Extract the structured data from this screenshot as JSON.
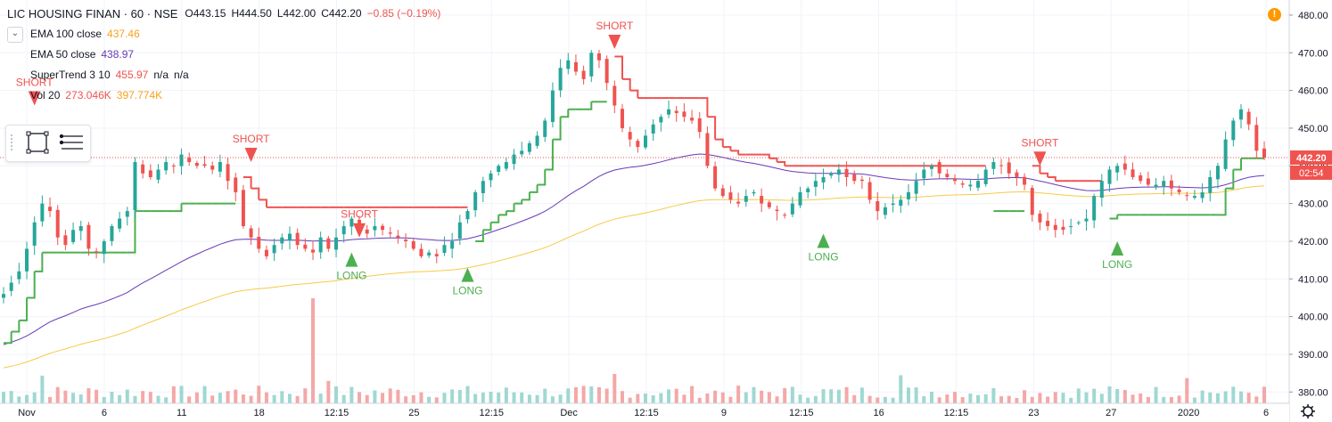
{
  "header": {
    "symbol": "LIC HOUSING FINAN · 60 · NSE",
    "open": "O443.15",
    "high": "H444.50",
    "low": "L442.00",
    "close": "C442.20",
    "change": "−0.85 (−0.19%)",
    "chevron_icon": "chevron-down-icon",
    "warning_icon": "warning-icon",
    "warning_glyph": "!"
  },
  "indicators": {
    "ema100": {
      "label": "EMA 100 close",
      "value": "437.46"
    },
    "ema50": {
      "label": "EMA 50 close",
      "value": "438.97"
    },
    "supertrend": {
      "label": "SuperTrend 3 10",
      "value": "455.97",
      "na1": "n/a",
      "na2": "n/a"
    },
    "volume": {
      "label": "Vol 20",
      "value1": "273.046K",
      "value2": "397.774K"
    }
  },
  "toolbox": {
    "icons": [
      "square-select-icon",
      "list-lines-icon"
    ]
  },
  "price_scale": {
    "ticks": [
      "480.00",
      "470.00",
      "460.00",
      "450.00",
      "440.00",
      "430.00",
      "420.00",
      "410.00",
      "400.00",
      "390.00",
      "380.00"
    ],
    "current_price": "442.20",
    "countdown": "02:54"
  },
  "time_axis": {
    "labels": [
      "Nov",
      "6",
      "11",
      "18",
      "12:15",
      "25",
      "12:15",
      "Dec",
      "12:15",
      "9",
      "12:15",
      "16",
      "12:15",
      "23",
      "27",
      "2020",
      "6"
    ],
    "settings_icon": "gear-icon"
  },
  "colors": {
    "up": "#26a69a",
    "down": "#ef5350",
    "ema100": "#f7c948",
    "ema50": "#673ab7",
    "supertrend_up": "#4caf50",
    "supertrend_down": "#ef5350",
    "price_line": "#ef5350"
  },
  "chart_data": {
    "type": "candlestick",
    "title": "LIC HOUSING FINAN · 60 · NSE",
    "ylim": [
      377,
      484
    ],
    "grid": true,
    "close_series": [
      {
        "x": "Nov",
        "y": [
          406,
          409,
          412,
          418,
          425,
          430,
          428,
          421,
          419,
          423,
          424,
          418,
          417,
          420,
          424,
          426,
          428
        ]
      },
      {
        "x": "6",
        "y": [
          441,
          438,
          437,
          439,
          441,
          440,
          443,
          441,
          440,
          440,
          439,
          441,
          436
        ]
      },
      {
        "x": "11",
        "y": [
          433,
          424,
          421,
          418,
          416,
          419,
          421,
          422,
          419,
          418,
          417,
          421
        ]
      },
      {
        "x": "18",
        "y": [
          418,
          421,
          424,
          426,
          424,
          422,
          424,
          423,
          422,
          421,
          420,
          418,
          416,
          417,
          416,
          419
        ]
      },
      {
        "x": "25",
        "y": [
          420,
          425,
          428,
          433,
          436,
          438,
          440,
          441,
          443,
          444,
          446,
          448,
          452,
          460,
          466,
          468,
          465,
          463
        ]
      },
      {
        "x": "Dec",
        "y": [
          470,
          468,
          462,
          456,
          450,
          447,
          445,
          448,
          451,
          453,
          455,
          454,
          453,
          452,
          449
        ]
      },
      {
        "x": "9",
        "y": [
          440,
          434,
          432,
          431,
          430,
          432,
          433,
          430,
          429,
          428,
          427
        ]
      },
      {
        "x": "12:15",
        "y": [
          430,
          433,
          434,
          436,
          437,
          438,
          439,
          437,
          436,
          436
        ]
      },
      {
        "x": "16",
        "y": [
          431,
          428,
          429,
          430,
          431,
          433,
          436,
          439,
          440,
          438,
          437,
          436,
          435,
          435,
          436,
          439,
          441,
          440,
          438,
          437
        ]
      },
      {
        "x": "23",
        "y": [
          435,
          427,
          425,
          424,
          423,
          423,
          424,
          425,
          426
        ]
      },
      {
        "x": "27",
        "y": [
          432,
          436,
          439,
          440,
          439,
          437,
          436,
          435,
          435,
          436,
          434,
          433,
          432,
          432,
          433,
          437,
          440,
          447,
          452,
          455,
          451,
          444,
          442.2
        ]
      }
    ],
    "series": [
      {
        "name": "EMA 100 close",
        "last": 437.46
      },
      {
        "name": "EMA 50 close",
        "last": 438.97
      },
      {
        "name": "SuperTrend 3 10",
        "last": 455.97
      }
    ],
    "signals": [
      {
        "type": "SHORT",
        "x": "11",
        "price": 441
      },
      {
        "type": "LONG",
        "x": "18",
        "price": 417
      },
      {
        "type": "SHORT",
        "x": "18",
        "price": 421
      },
      {
        "type": "LONG",
        "x": "25",
        "price": 413
      },
      {
        "type": "SHORT",
        "x": "Dec",
        "price": 471
      },
      {
        "type": "LONG",
        "x": "12:15",
        "price": 422
      },
      {
        "type": "SHORT",
        "x": "23",
        "price": 440
      },
      {
        "type": "LONG",
        "x": "27",
        "price": 420
      },
      {
        "type": "SHORT",
        "x": "2020",
        "price": 456
      }
    ],
    "volume": {
      "label": "Vol 20",
      "value1": "273.046K",
      "value2": "397.774K"
    }
  }
}
